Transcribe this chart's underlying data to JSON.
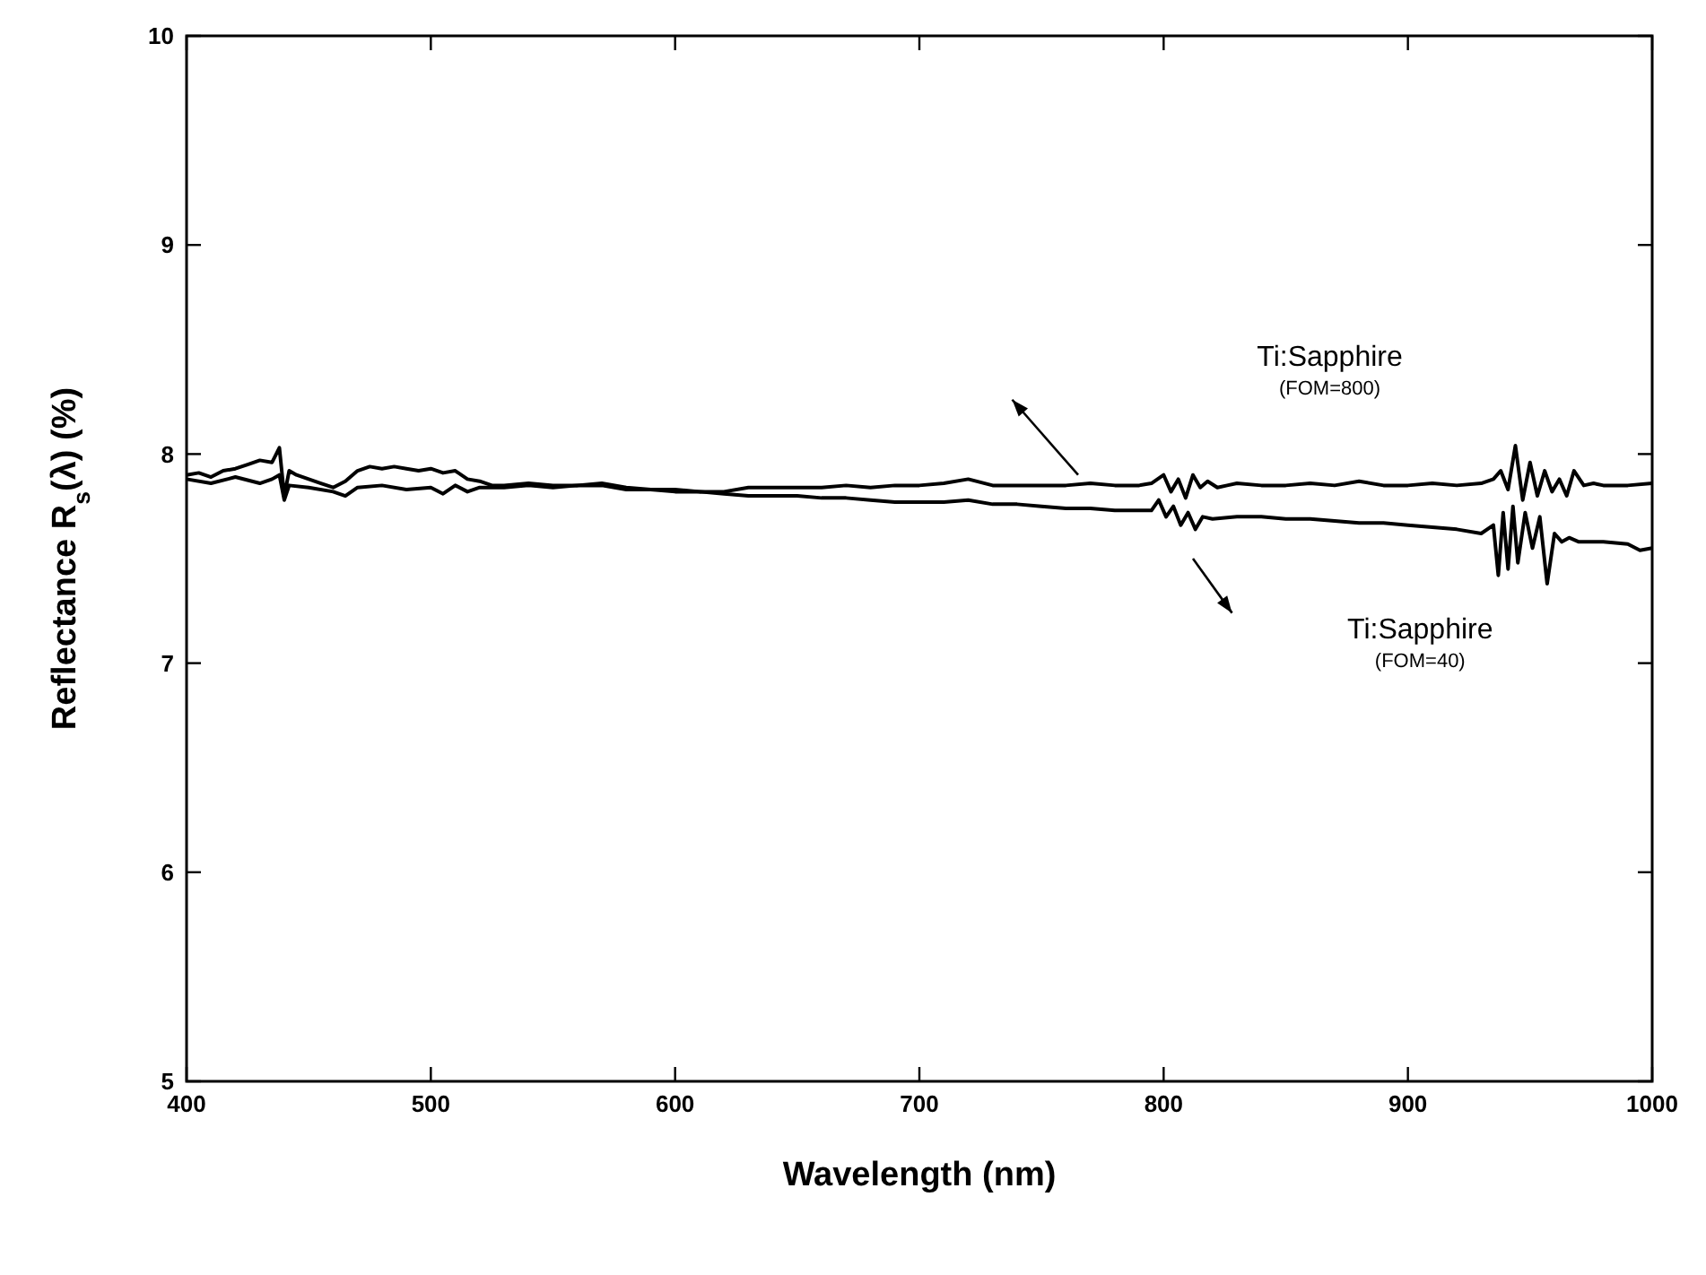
{
  "chart_data": {
    "type": "line",
    "xlabel": "Wavelength (nm)",
    "ylabel": "Reflectance R$_{s}$(λ)  (%)",
    "xlim": [
      400,
      1000
    ],
    "ylim": [
      5,
      10
    ],
    "xticks": [
      400,
      500,
      600,
      700,
      800,
      900,
      1000
    ],
    "yticks": [
      5,
      6,
      7,
      8,
      9,
      10
    ],
    "grid": false,
    "marker": "none",
    "line_style": "solid",
    "x": [
      400,
      405,
      410,
      415,
      420,
      425,
      430,
      435,
      438,
      440,
      442,
      445,
      450,
      455,
      460,
      465,
      470,
      475,
      480,
      485,
      490,
      495,
      500,
      505,
      510,
      515,
      520,
      525,
      530,
      540,
      550,
      560,
      570,
      580,
      590,
      600,
      610,
      620,
      630,
      640,
      650,
      660,
      670,
      680,
      690,
      700,
      710,
      720,
      730,
      740,
      750,
      760,
      770,
      780,
      790,
      795,
      800,
      803,
      806,
      809,
      812,
      815,
      818,
      822,
      826,
      830,
      840,
      850,
      860,
      870,
      880,
      890,
      900,
      910,
      920,
      930,
      935,
      938,
      941,
      944,
      947,
      950,
      953,
      956,
      959,
      962,
      965,
      968,
      972,
      976,
      980,
      990,
      1000
    ],
    "series": [
      {
        "name": "Ti:Sapphire (FOM=800)",
        "color": "#000000",
        "values": [
          7.9,
          7.91,
          7.89,
          7.92,
          7.93,
          7.95,
          7.97,
          7.96,
          8.03,
          7.8,
          7.92,
          7.9,
          7.88,
          7.86,
          7.84,
          7.87,
          7.92,
          7.94,
          7.93,
          7.94,
          7.93,
          7.92,
          7.93,
          7.91,
          7.92,
          7.88,
          7.87,
          7.85,
          7.85,
          7.86,
          7.85,
          7.85,
          7.86,
          7.84,
          7.83,
          7.83,
          7.82,
          7.82,
          7.84,
          7.84,
          7.84,
          7.84,
          7.85,
          7.84,
          7.85,
          7.85,
          7.86,
          7.88,
          7.85,
          7.85,
          7.85,
          7.85,
          7.86,
          7.85,
          7.85,
          7.86,
          7.9,
          7.82,
          7.88,
          7.79,
          7.9,
          7.84,
          7.87,
          7.84,
          7.85,
          7.86,
          7.85,
          7.85,
          7.86,
          7.85,
          7.87,
          7.85,
          7.85,
          7.86,
          7.85,
          7.86,
          7.88,
          7.92,
          7.83,
          8.04,
          7.78,
          7.96,
          7.8,
          7.92,
          7.82,
          7.88,
          7.8,
          7.92,
          7.85,
          7.86,
          7.85,
          7.85,
          7.86
        ]
      },
      {
        "name": "Ti:Sapphire (FOM=40)",
        "color": "#000000",
        "x": [
          400,
          410,
          420,
          430,
          435,
          438,
          440,
          442,
          450,
          460,
          465,
          470,
          480,
          490,
          500,
          505,
          510,
          515,
          520,
          530,
          540,
          550,
          560,
          570,
          580,
          590,
          600,
          610,
          620,
          630,
          640,
          650,
          660,
          670,
          680,
          690,
          700,
          710,
          720,
          730,
          740,
          750,
          760,
          770,
          780,
          790,
          795,
          798,
          801,
          804,
          807,
          810,
          813,
          816,
          820,
          830,
          840,
          850,
          860,
          870,
          880,
          890,
          900,
          910,
          920,
          930,
          935,
          937,
          939,
          941,
          943,
          945,
          948,
          951,
          954,
          957,
          960,
          963,
          966,
          970,
          980,
          990,
          995,
          1000
        ],
        "values": [
          7.88,
          7.86,
          7.89,
          7.86,
          7.88,
          7.9,
          7.78,
          7.85,
          7.84,
          7.82,
          7.8,
          7.84,
          7.85,
          7.83,
          7.84,
          7.81,
          7.85,
          7.82,
          7.84,
          7.84,
          7.85,
          7.84,
          7.85,
          7.85,
          7.83,
          7.83,
          7.82,
          7.82,
          7.81,
          7.8,
          7.8,
          7.8,
          7.79,
          7.79,
          7.78,
          7.77,
          7.77,
          7.77,
          7.78,
          7.76,
          7.76,
          7.75,
          7.74,
          7.74,
          7.73,
          7.73,
          7.73,
          7.78,
          7.7,
          7.75,
          7.66,
          7.72,
          7.64,
          7.7,
          7.69,
          7.7,
          7.7,
          7.69,
          7.69,
          7.68,
          7.67,
          7.67,
          7.66,
          7.65,
          7.64,
          7.62,
          7.66,
          7.42,
          7.72,
          7.45,
          7.75,
          7.48,
          7.72,
          7.55,
          7.7,
          7.38,
          7.62,
          7.58,
          7.6,
          7.58,
          7.58,
          7.57,
          7.54,
          7.55
        ]
      }
    ]
  }
}
